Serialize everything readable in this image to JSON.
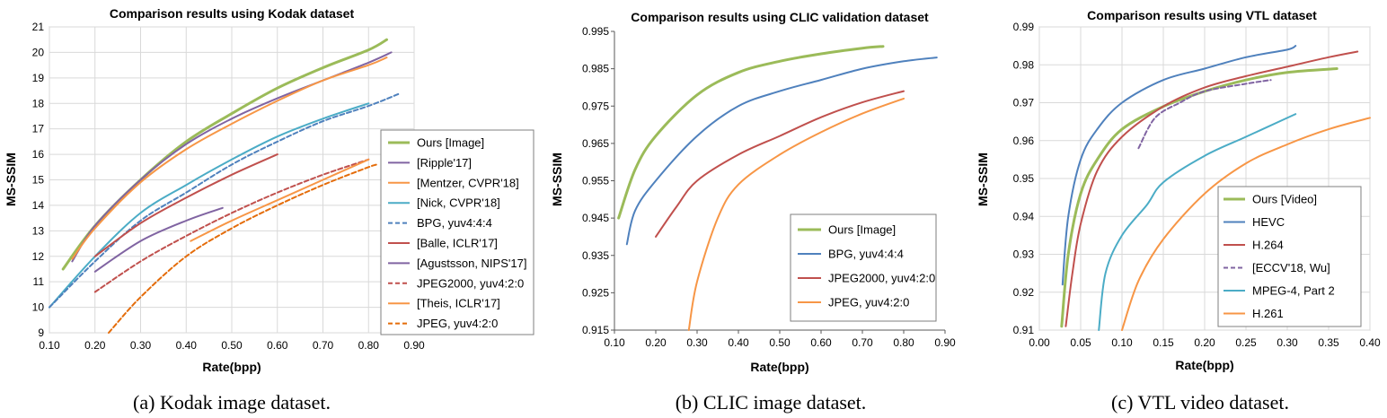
{
  "chart_data": [
    {
      "type": "line",
      "title": "Comparison results using Kodak dataset",
      "xlabel": "Rate(bpp)",
      "ylabel": "MS-SSIM",
      "xlim": [
        0.1,
        0.9
      ],
      "ylim": [
        9,
        21
      ],
      "xticks": [
        0.1,
        0.2,
        0.3,
        0.4,
        0.5,
        0.6,
        0.7,
        0.8,
        0.9
      ],
      "xtick_labels": [
        "0.10",
        "0.20",
        "0.30",
        "0.40",
        "0.50",
        "0.60",
        "0.70",
        "0.80",
        "0.90"
      ],
      "yticks": [
        9,
        10,
        11,
        12,
        13,
        14,
        15,
        16,
        17,
        18,
        19,
        20,
        21
      ],
      "ytick_labels": [
        "9",
        "10",
        "11",
        "12",
        "13",
        "14",
        "15",
        "16",
        "17",
        "18",
        "19",
        "20",
        "21"
      ],
      "grid": true,
      "legend_position": "right",
      "caption": "(a)  Kodak image dataset.",
      "series": [
        {
          "name": "Ours [Image]",
          "color": "#9bbb59",
          "width": 3,
          "dash": false,
          "x": [
            0.13,
            0.2,
            0.3,
            0.4,
            0.5,
            0.6,
            0.7,
            0.8,
            0.84
          ],
          "y": [
            11.5,
            13.2,
            15.0,
            16.5,
            17.6,
            18.6,
            19.4,
            20.1,
            20.5
          ]
        },
        {
          "name": "[Ripple'17]",
          "color": "#8064a2",
          "width": 2,
          "dash": false,
          "x": [
            0.15,
            0.2,
            0.3,
            0.4,
            0.5,
            0.6,
            0.7,
            0.8,
            0.85
          ],
          "y": [
            11.8,
            13.2,
            15.0,
            16.4,
            17.4,
            18.2,
            18.9,
            19.6,
            20.0
          ]
        },
        {
          "name": "[Mentzer, CVPR'18]",
          "color": "#f79646",
          "width": 2,
          "dash": false,
          "x": [
            0.15,
            0.2,
            0.3,
            0.4,
            0.5,
            0.6,
            0.7,
            0.8,
            0.84
          ],
          "y": [
            11.9,
            13.1,
            14.9,
            16.2,
            17.2,
            18.1,
            18.9,
            19.5,
            19.8
          ]
        },
        {
          "name": "[Nick, CVPR'18]",
          "color": "#4bacc6",
          "width": 2,
          "dash": false,
          "x": [
            0.1,
            0.2,
            0.3,
            0.4,
            0.5,
            0.6,
            0.7,
            0.8
          ],
          "y": [
            10.0,
            12.0,
            13.7,
            14.8,
            15.8,
            16.7,
            17.4,
            18.0
          ]
        },
        {
          "name": "BPG, yuv4:4:4",
          "color": "#4f81bd",
          "width": 2,
          "dash": true,
          "x": [
            0.1,
            0.2,
            0.3,
            0.4,
            0.5,
            0.6,
            0.7,
            0.8,
            0.87
          ],
          "y": [
            10.0,
            11.8,
            13.4,
            14.5,
            15.6,
            16.5,
            17.3,
            17.9,
            18.4
          ]
        },
        {
          "name": "[Balle, ICLR'17]",
          "color": "#c0504d",
          "width": 2,
          "dash": false,
          "x": [
            0.2,
            0.3,
            0.4,
            0.5,
            0.6
          ],
          "y": [
            12.0,
            13.3,
            14.3,
            15.2,
            16.0
          ]
        },
        {
          "name": "[Agustsson, NIPS'17]",
          "color": "#8064a2",
          "width": 2,
          "dash": false,
          "x": [
            0.2,
            0.3,
            0.4,
            0.48
          ],
          "y": [
            11.4,
            12.6,
            13.4,
            13.9
          ]
        },
        {
          "name": "JPEG2000, yuv4:2:0",
          "color": "#c0504d",
          "width": 2,
          "dash": true,
          "x": [
            0.2,
            0.3,
            0.4,
            0.5,
            0.6,
            0.7,
            0.8
          ],
          "y": [
            10.6,
            11.8,
            12.8,
            13.7,
            14.5,
            15.2,
            15.8
          ]
        },
        {
          "name": "[Theis, ICLR'17]",
          "color": "#f79646",
          "width": 2,
          "dash": false,
          "x": [
            0.41,
            0.5,
            0.6,
            0.7,
            0.8
          ],
          "y": [
            12.6,
            13.4,
            14.2,
            15.0,
            15.8
          ]
        },
        {
          "name": "JPEG, yuv4:2:0",
          "color": "#e46c0a",
          "width": 2,
          "dash": true,
          "x": [
            0.23,
            0.3,
            0.4,
            0.5,
            0.6,
            0.7,
            0.8,
            0.82
          ],
          "y": [
            9.0,
            10.4,
            12.0,
            13.1,
            14.0,
            14.8,
            15.5,
            15.6
          ]
        }
      ]
    },
    {
      "type": "line",
      "title": "Comparison results using CLIC validation dataset",
      "xlabel": "Rate(bpp)",
      "ylabel": "MS-SSIM",
      "xlim": [
        0.1,
        0.9
      ],
      "ylim": [
        0.915,
        0.995
      ],
      "xticks": [
        0.1,
        0.2,
        0.3,
        0.4,
        0.5,
        0.6,
        0.7,
        0.8,
        0.9
      ],
      "xtick_labels": [
        "0.10",
        "0.20",
        "0.30",
        "0.40",
        "0.50",
        "0.60",
        "0.70",
        "0.80",
        "0.90"
      ],
      "yticks": [
        0.915,
        0.925,
        0.935,
        0.945,
        0.955,
        0.965,
        0.975,
        0.985,
        0.995
      ],
      "ytick_labels": [
        "0.915",
        "0.925",
        "0.935",
        "0.945",
        "0.955",
        "0.965",
        "0.975",
        "0.985",
        "0.995"
      ],
      "grid": false,
      "legend_position": "bottom-right",
      "caption": "(b)  CLIC image dataset.",
      "series": [
        {
          "name": "Ours [Image]",
          "color": "#9bbb59",
          "width": 3,
          "dash": false,
          "x": [
            0.11,
            0.15,
            0.2,
            0.3,
            0.4,
            0.5,
            0.6,
            0.7,
            0.75
          ],
          "y": [
            0.945,
            0.958,
            0.967,
            0.978,
            0.984,
            0.987,
            0.989,
            0.9905,
            0.991
          ]
        },
        {
          "name": "BPG, yuv4:4:4",
          "color": "#4f81bd",
          "width": 2,
          "dash": false,
          "x": [
            0.13,
            0.15,
            0.2,
            0.3,
            0.4,
            0.5,
            0.6,
            0.7,
            0.8,
            0.88
          ],
          "y": [
            0.938,
            0.947,
            0.955,
            0.967,
            0.975,
            0.979,
            0.982,
            0.985,
            0.987,
            0.988
          ]
        },
        {
          "name": "JPEG2000, yuv4:2:0",
          "color": "#c0504d",
          "width": 2,
          "dash": false,
          "x": [
            0.2,
            0.25,
            0.3,
            0.4,
            0.5,
            0.6,
            0.7,
            0.8
          ],
          "y": [
            0.94,
            0.948,
            0.955,
            0.962,
            0.967,
            0.972,
            0.976,
            0.979
          ]
        },
        {
          "name": "JPEG, yuv4:2:0",
          "color": "#f79646",
          "width": 2,
          "dash": false,
          "x": [
            0.28,
            0.3,
            0.35,
            0.4,
            0.5,
            0.6,
            0.7,
            0.8
          ],
          "y": [
            0.915,
            0.928,
            0.945,
            0.954,
            0.962,
            0.968,
            0.973,
            0.977
          ]
        }
      ]
    },
    {
      "type": "line",
      "title": "Comparison results using VTL dataset",
      "xlabel": "Rate(bpp)",
      "ylabel": "MS-SSIM",
      "xlim": [
        0.0,
        0.4
      ],
      "ylim": [
        0.91,
        0.99
      ],
      "xticks": [
        0.0,
        0.05,
        0.1,
        0.15,
        0.2,
        0.25,
        0.3,
        0.35,
        0.4
      ],
      "xtick_labels": [
        "0.00",
        "0.05",
        "0.10",
        "0.15",
        "0.20",
        "0.25",
        "0.30",
        "0.35",
        "0.40"
      ],
      "yticks": [
        0.91,
        0.92,
        0.93,
        0.94,
        0.95,
        0.96,
        0.97,
        0.98,
        0.99
      ],
      "ytick_labels": [
        "0.91",
        "0.92",
        "0.93",
        "0.94",
        "0.95",
        "0.96",
        "0.97",
        "0.98",
        "0.99"
      ],
      "grid": true,
      "legend_position": "bottom-right",
      "caption": "(c)  VTL video dataset.",
      "series": [
        {
          "name": "Ours [Video]",
          "color": "#9bbb59",
          "width": 3,
          "dash": false,
          "x": [
            0.027,
            0.035,
            0.05,
            0.07,
            0.1,
            0.15,
            0.2,
            0.25,
            0.3,
            0.36
          ],
          "y": [
            0.911,
            0.93,
            0.946,
            0.955,
            0.963,
            0.969,
            0.973,
            0.976,
            0.978,
            0.979
          ]
        },
        {
          "name": "HEVC",
          "color": "#4f81bd",
          "width": 2,
          "dash": false,
          "x": [
            0.028,
            0.035,
            0.05,
            0.07,
            0.1,
            0.15,
            0.2,
            0.25,
            0.3,
            0.31
          ],
          "y": [
            0.922,
            0.94,
            0.955,
            0.963,
            0.97,
            0.976,
            0.979,
            0.982,
            0.984,
            0.985
          ]
        },
        {
          "name": "H.264",
          "color": "#c0504d",
          "width": 2,
          "dash": false,
          "x": [
            0.032,
            0.04,
            0.05,
            0.07,
            0.1,
            0.15,
            0.2,
            0.25,
            0.3,
            0.35,
            0.385
          ],
          "y": [
            0.911,
            0.925,
            0.938,
            0.952,
            0.961,
            0.969,
            0.974,
            0.977,
            0.9795,
            0.982,
            0.9835
          ]
        },
        {
          "name": "[ECCV'18, Wu]",
          "color": "#8064a2",
          "width": 2,
          "dash": true,
          "x": [
            0.12,
            0.14,
            0.17,
            0.2,
            0.25,
            0.28
          ],
          "y": [
            0.958,
            0.966,
            0.97,
            0.973,
            0.975,
            0.976
          ]
        },
        {
          "name": "MPEG-4, Part 2",
          "color": "#4bacc6",
          "width": 2,
          "dash": false,
          "x": [
            0.072,
            0.08,
            0.1,
            0.13,
            0.15,
            0.2,
            0.25,
            0.3,
            0.31
          ],
          "y": [
            0.91,
            0.925,
            0.935,
            0.943,
            0.949,
            0.956,
            0.961,
            0.966,
            0.967
          ]
        },
        {
          "name": "H.261",
          "color": "#f79646",
          "width": 2,
          "dash": false,
          "x": [
            0.1,
            0.12,
            0.15,
            0.2,
            0.25,
            0.3,
            0.35,
            0.4
          ],
          "y": [
            0.91,
            0.923,
            0.934,
            0.946,
            0.954,
            0.959,
            0.963,
            0.966
          ]
        }
      ]
    }
  ]
}
